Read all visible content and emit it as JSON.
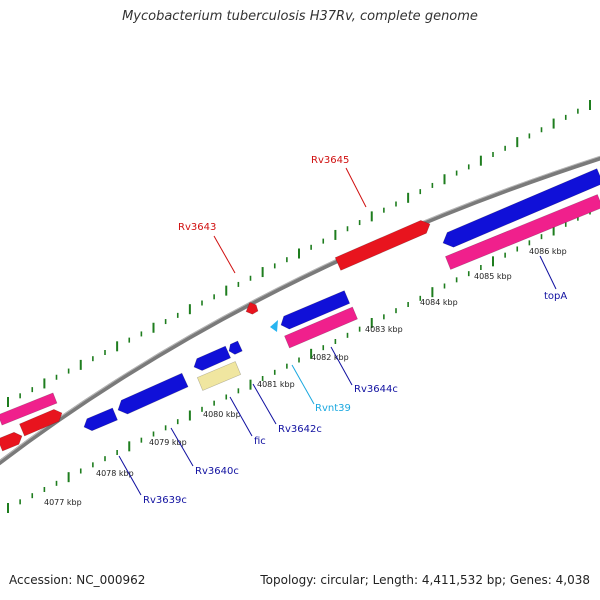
{
  "title": "Mycobacterium tuberculosis H37Rv, complete genome",
  "footer": {
    "accession": "Accession: NC_000962",
    "stats": "Topology: circular; Length: 4,411,532 bp; Genes: 4,038"
  },
  "colors": {
    "backbone": "#7a7a7a",
    "ticks": "#1e7d1e",
    "cds_red": "#e8141e",
    "cds_blue": "#1010d8",
    "cds_pink": "#f0208c",
    "cds_yellow": "#f0e6a0",
    "ncrna_cyan": "#28b4f0",
    "label_red": "#d01010",
    "label_blue": "#1010a0",
    "label_cyan": "#1aa8e0"
  },
  "tick_labels": [
    "4077 kbp",
    "4078 kbp",
    "4079 kbp",
    "4080 kbp",
    "4081 kbp",
    "4082 kbp",
    "4083 kbp",
    "4084 kbp",
    "4085 kbp",
    "4086 kbp"
  ],
  "gene_labels": [
    {
      "text": "Rv3645",
      "color": "red"
    },
    {
      "text": "Rv3643",
      "color": "red"
    },
    {
      "text": "Rv3644c",
      "color": "blue"
    },
    {
      "text": "Rvnt39",
      "color": "cyan"
    },
    {
      "text": "Rv3642c",
      "color": "blue"
    },
    {
      "text": "fic",
      "color": "blue"
    },
    {
      "text": "Rv3640c",
      "color": "blue"
    },
    {
      "text": "Rv3639c",
      "color": "blue"
    },
    {
      "text": "topA",
      "color": "blue"
    }
  ]
}
